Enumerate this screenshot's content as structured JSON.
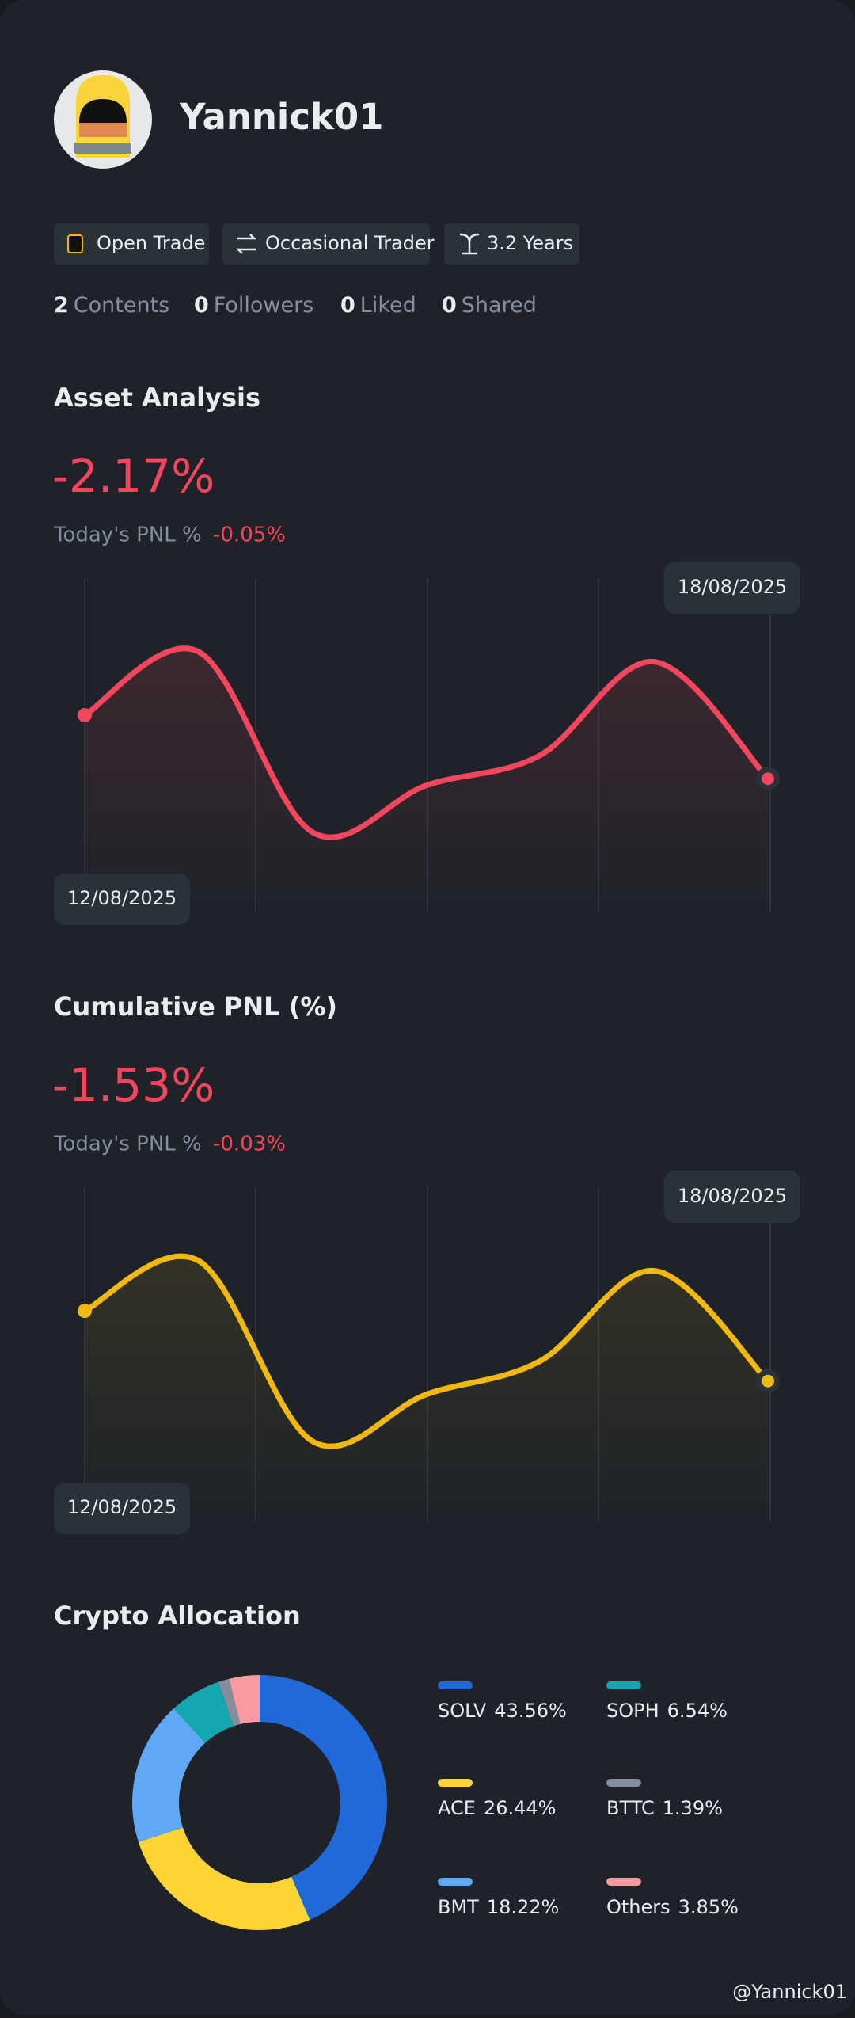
{
  "profile": {
    "name": "Yannick01",
    "tags": [
      "Open Trade",
      "Occasional Trader",
      "3.2 Years"
    ],
    "stats": [
      {
        "value": 2,
        "label": "Contents"
      },
      {
        "value": 0,
        "label": "Followers"
      },
      {
        "value": 0,
        "label": "Liked"
      },
      {
        "value": 0,
        "label": "Shared"
      }
    ],
    "watermark": "@Yannick01"
  },
  "chart_data": [
    {
      "type": "line",
      "title": "Asset Analysis",
      "headline": "-2.17%",
      "subtitle": "Today's PNL %",
      "subtitle_value": "-0.05%",
      "categories": [
        "12/08/2025",
        null,
        null,
        null,
        null,
        null,
        "18/08/2025"
      ],
      "series": [
        {
          "color": "#f6465d",
          "values": [
            59,
            78,
            24,
            38,
            47,
            75,
            40
          ]
        }
      ],
      "ylim": [
        0,
        100
      ]
    },
    {
      "type": "line",
      "title": "Cumulative PNL (%)",
      "headline": "-1.53%",
      "subtitle": "Today's PNL %",
      "subtitle_value": "-0.03%",
      "categories": [
        "12/08/2025",
        null,
        null,
        null,
        null,
        null,
        "18/08/2025"
      ],
      "series": [
        {
          "color": "#f0b90b",
          "values": [
            63,
            78,
            24,
            38,
            48,
            75,
            42
          ]
        }
      ],
      "ylim": [
        0,
        100
      ]
    },
    {
      "type": "pie",
      "title": "Crypto Allocation",
      "categories": [
        "SOLV",
        "ACE",
        "BMT",
        "SOPH",
        "BTTC",
        "Others"
      ],
      "values": [
        43.56,
        26.44,
        18.22,
        6.54,
        1.39,
        3.85
      ],
      "value_labels": [
        "43.56%",
        "26.44%",
        "18.22%",
        "6.54%",
        "1.39%",
        "3.85%"
      ],
      "colors": [
        "#2169d8",
        "#fcd535",
        "#5ea8f5",
        "#13a8b0",
        "#848e9c",
        "#f89aa0"
      ]
    }
  ]
}
